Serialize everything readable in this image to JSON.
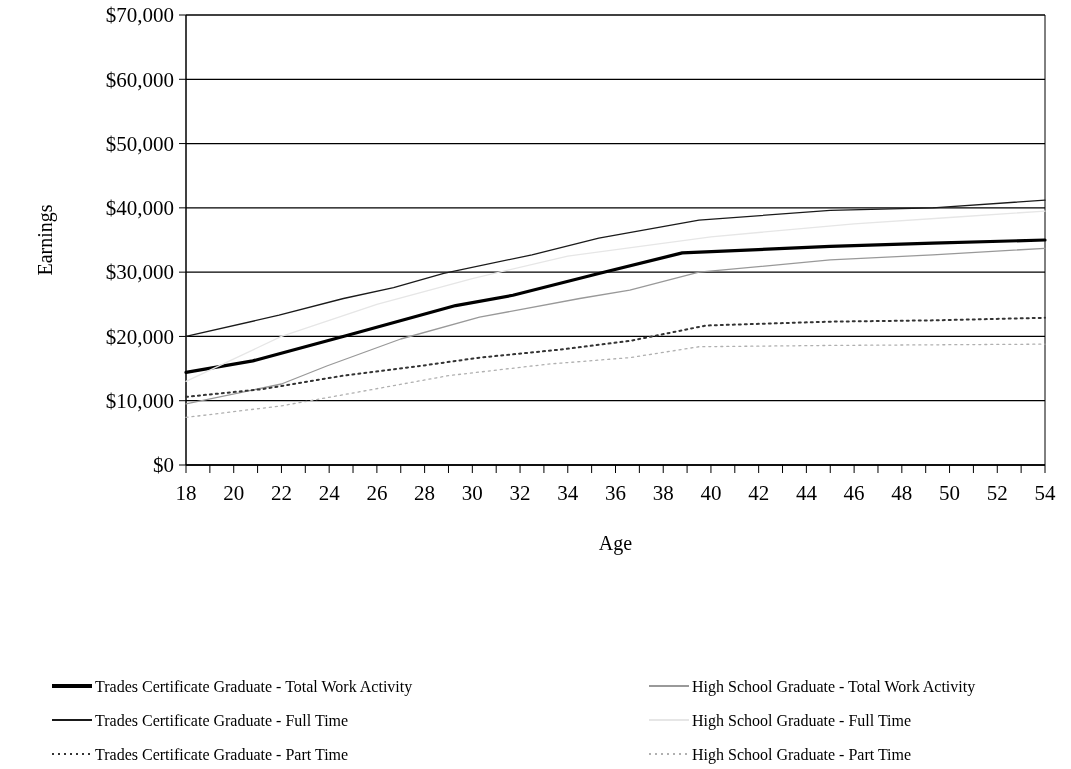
{
  "chart_data": {
    "type": "line",
    "xlabel": "Age",
    "ylabel": "Earnings",
    "xlim": [
      18,
      54
    ],
    "ylim": [
      0,
      70000
    ],
    "xticks": [
      18,
      {
        "value": 19,
        "label": null
      },
      20,
      {
        "value": 21,
        "label": null
      },
      22,
      {
        "value": 23,
        "label": null
      },
      24,
      {
        "value": 25,
        "label": null
      },
      26,
      {
        "value": 27,
        "label": null
      },
      28,
      {
        "value": 29,
        "label": null
      },
      30,
      {
        "value": 31,
        "label": null
      },
      32,
      {
        "value": 33,
        "label": null
      },
      34,
      {
        "value": 35,
        "label": null
      },
      36,
      {
        "value": 37,
        "label": null
      },
      38,
      {
        "value": 39,
        "label": null
      },
      40,
      {
        "value": 41,
        "label": null
      },
      42,
      {
        "value": 43,
        "label": null
      },
      44,
      {
        "value": 45,
        "label": null
      },
      46,
      {
        "value": 47,
        "label": null
      },
      48,
      {
        "value": 49,
        "label": null
      },
      50,
      {
        "value": 51,
        "label": null
      },
      52,
      {
        "value": 53,
        "label": null
      },
      54
    ],
    "yticks": [
      {
        "value": 0,
        "label": "$0"
      },
      {
        "value": 10000,
        "label": "$10,000"
      },
      {
        "value": 20000,
        "label": "$20,000"
      },
      {
        "value": 30000,
        "label": "$30,000"
      },
      {
        "value": 40000,
        "label": "$40,000"
      },
      {
        "value": 50000,
        "label": "$50,000"
      },
      {
        "value": 60000,
        "label": "$60,000"
      },
      {
        "value": 70000,
        "label": "$70,000"
      }
    ],
    "grid": "y",
    "legend": "bottom",
    "marker": "none",
    "series": [
      {
        "name": "Trades Certificate Graduate - Total Work Activity",
        "color": "#000000",
        "line_style": "solid",
        "x": [
          18,
          20.8,
          24.7,
          29.3,
          31.7,
          35.3,
          38.8,
          45,
          49.3,
          54
        ],
        "values": [
          14400,
          16200,
          20100,
          24800,
          26400,
          29800,
          33000,
          34000,
          34500,
          35000
        ]
      },
      {
        "name": "High School Graduate - Total Work Activity",
        "color": "#999999",
        "line_style": "solid",
        "x": [
          18,
          22,
          23.9,
          27,
          30.3,
          34.5,
          36.6,
          39.5,
          45,
          49.3,
          54
        ],
        "values": [
          9500,
          12600,
          15400,
          19600,
          23000,
          25900,
          27200,
          30000,
          31900,
          32700,
          33700
        ]
      },
      {
        "name": "Trades Certificate Graduate - Full Time",
        "color": "#1a1a1a",
        "line_style": "solid",
        "x": [
          18,
          21.9,
          24.6,
          26.7,
          28.8,
          32.5,
          35.3,
          39.5,
          45,
          49.3,
          54
        ],
        "values": [
          20000,
          23300,
          25900,
          27600,
          29800,
          32700,
          35300,
          38100,
          39600,
          40000,
          41200
        ]
      },
      {
        "name": "High School Graduate - Full Time",
        "color": "#e6e6e6",
        "line_style": "solid",
        "x": [
          18,
          22,
          26,
          30,
          34,
          40,
          46,
          50,
          54
        ],
        "values": [
          13000,
          20000,
          25000,
          29000,
          32500,
          35500,
          37500,
          38500,
          39500
        ]
      },
      {
        "name": "Trades Certificate Graduate - Part Time",
        "color": "#333333",
        "line_style": "dotted",
        "x": [
          18,
          21.2,
          24.6,
          27.8,
          30.3,
          33.8,
          36.6,
          39.8,
          45,
          49.3,
          54
        ],
        "values": [
          10600,
          11800,
          13900,
          15400,
          16700,
          18000,
          19300,
          21700,
          22300,
          22500,
          22900
        ]
      },
      {
        "name": "High School Graduate - Part Time",
        "color": "#b0b0b0",
        "line_style": "dotted",
        "x": [
          18,
          22,
          24.7,
          29,
          33.2,
          36.6,
          39.5,
          45,
          54
        ],
        "values": [
          7400,
          9200,
          11000,
          13900,
          15700,
          16700,
          18400,
          18600,
          18800
        ]
      }
    ]
  }
}
